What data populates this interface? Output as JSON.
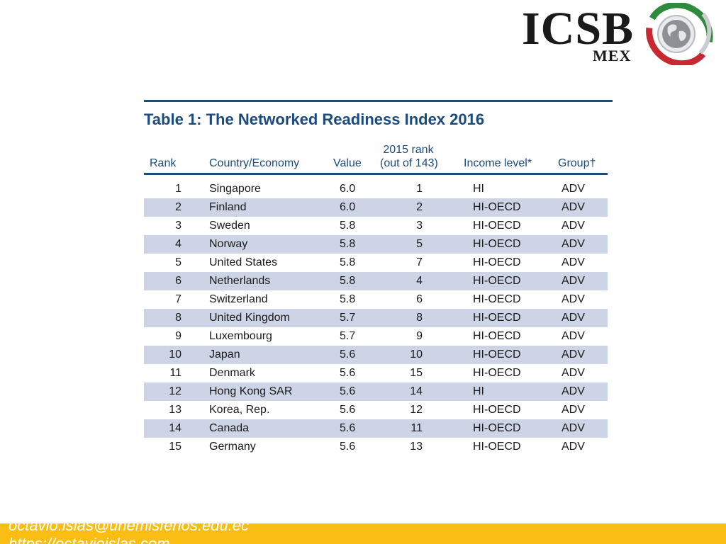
{
  "logo": {
    "text": "ICSB",
    "subtext": "MEX",
    "icon": "globe-icon",
    "ring_colors": [
      "#2e8b3d",
      "#c8282f",
      "#9aa0a6"
    ]
  },
  "table": {
    "title": "Table 1: The Networked Readiness Index 2016",
    "headers": {
      "rank": "Rank",
      "country": "Country/Economy",
      "value": "Value",
      "prev_rank_line1": "2015 rank",
      "prev_rank_line2": "(out of 143)",
      "income": "Income level*",
      "group": "Group†"
    },
    "rows": [
      {
        "rank": "1",
        "country": "Singapore",
        "value": "6.0",
        "prev": "1",
        "income": "HI",
        "group": "ADV"
      },
      {
        "rank": "2",
        "country": "Finland",
        "value": "6.0",
        "prev": "2",
        "income": "HI-OECD",
        "group": "ADV"
      },
      {
        "rank": "3",
        "country": "Sweden",
        "value": "5.8",
        "prev": "3",
        "income": "HI-OECD",
        "group": "ADV"
      },
      {
        "rank": "4",
        "country": "Norway",
        "value": "5.8",
        "prev": "5",
        "income": "HI-OECD",
        "group": "ADV"
      },
      {
        "rank": "5",
        "country": "United States",
        "value": "5.8",
        "prev": "7",
        "income": "HI-OECD",
        "group": "ADV"
      },
      {
        "rank": "6",
        "country": "Netherlands",
        "value": "5.8",
        "prev": "4",
        "income": "HI-OECD",
        "group": "ADV"
      },
      {
        "rank": "7",
        "country": "Switzerland",
        "value": "5.8",
        "prev": "6",
        "income": "HI-OECD",
        "group": "ADV"
      },
      {
        "rank": "8",
        "country": "United Kingdom",
        "value": "5.7",
        "prev": "8",
        "income": "HI-OECD",
        "group": "ADV"
      },
      {
        "rank": "9",
        "country": "Luxembourg",
        "value": "5.7",
        "prev": "9",
        "income": "HI-OECD",
        "group": "ADV"
      },
      {
        "rank": "10",
        "country": "Japan",
        "value": "5.6",
        "prev": "10",
        "income": "HI-OECD",
        "group": "ADV"
      },
      {
        "rank": "11",
        "country": "Denmark",
        "value": "5.6",
        "prev": "15",
        "income": "HI-OECD",
        "group": "ADV"
      },
      {
        "rank": "12",
        "country": "Hong Kong SAR",
        "value": "5.6",
        "prev": "14",
        "income": "HI",
        "group": "ADV"
      },
      {
        "rank": "13",
        "country": "Korea, Rep.",
        "value": "5.6",
        "prev": "12",
        "income": "HI-OECD",
        "group": "ADV"
      },
      {
        "rank": "14",
        "country": "Canada",
        "value": "5.6",
        "prev": "11",
        "income": "HI-OECD",
        "group": "ADV"
      },
      {
        "rank": "15",
        "country": "Germany",
        "value": "5.6",
        "prev": "13",
        "income": "HI-OECD",
        "group": "ADV"
      }
    ]
  },
  "footer": {
    "email": "octavio.islas@uhemisferios.edu.ec",
    "website": "https://octavioislas.com"
  },
  "colors": {
    "accent": "#1c4a7a",
    "row_shade": "#cdd4e5",
    "footer_bg": "#f9bd13"
  }
}
